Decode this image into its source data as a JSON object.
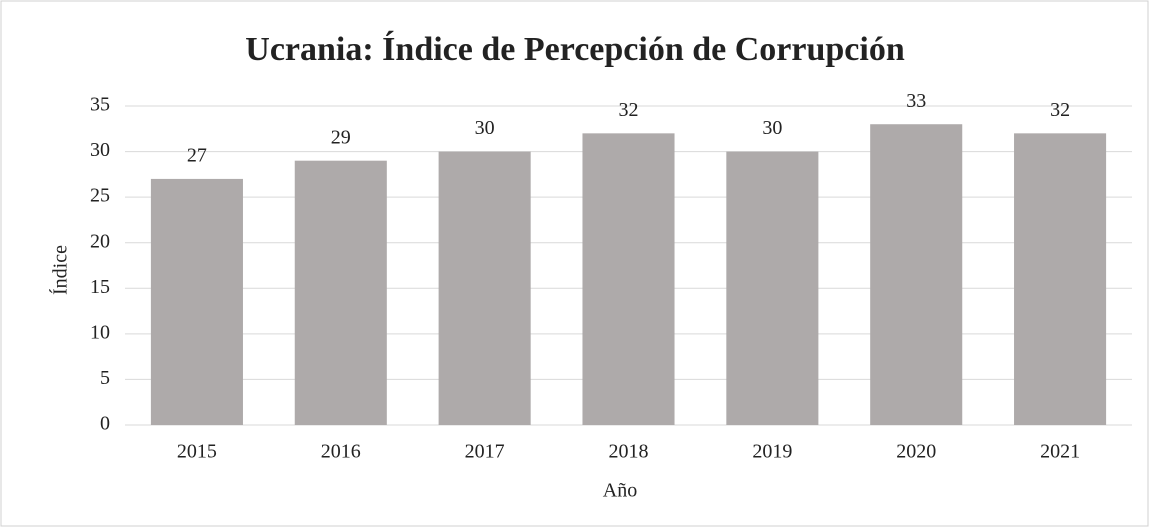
{
  "chart_data": {
    "type": "bar",
    "title": "Ucrania: Índice de Percepción de Corrupción",
    "x_label": "Año",
    "y_label": "Índice",
    "categories": [
      "2015",
      "2016",
      "2017",
      "2018",
      "2019",
      "2020",
      "2021"
    ],
    "values": [
      27,
      29,
      30,
      32,
      30,
      33,
      32
    ],
    "color": "#aeaaaa",
    "ylim": [
      0,
      35
    ],
    "yticks": [
      0,
      5,
      10,
      15,
      20,
      25,
      30,
      35
    ],
    "grid": true
  }
}
